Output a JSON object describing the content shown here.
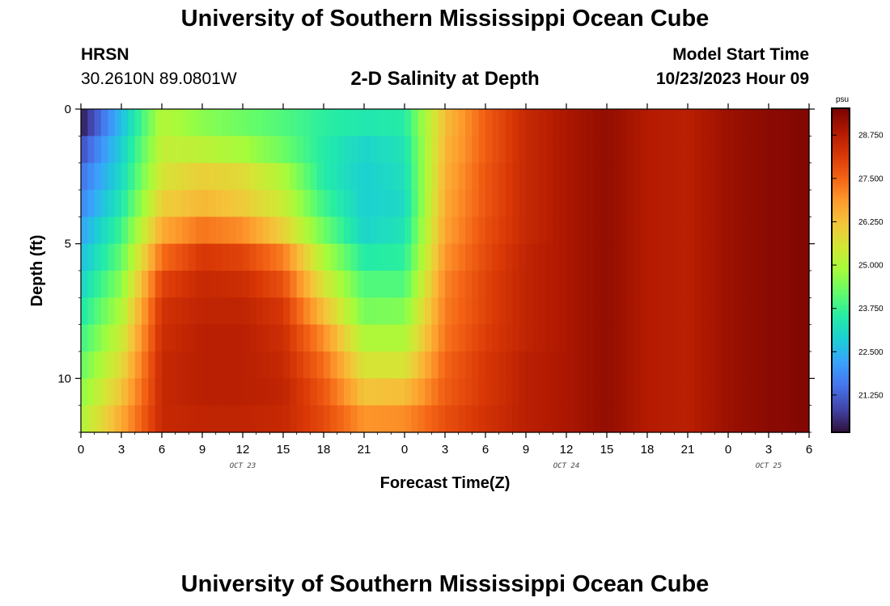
{
  "header": {
    "title": "University of Southern Mississippi Ocean Cube",
    "station_name": "HRSN",
    "coordinates": "30.2610N  89.0801W",
    "plot_title": "2-D Salinity at Depth",
    "model_start_label": "Model Start Time",
    "model_start_time": "10/23/2023 Hour 09"
  },
  "footer": {
    "title": "University of Southern Mississippi Ocean Cube"
  },
  "colors": {
    "colormap": [
      "#30123b",
      "#4145ab",
      "#4675ed",
      "#39a2fc",
      "#1bcfd4",
      "#24eca6",
      "#61fc6c",
      "#a4fc3b",
      "#d1e834",
      "#f3c63a",
      "#fe9b2d",
      "#f36315",
      "#d93806",
      "#b11901",
      "#7a0402"
    ]
  },
  "chart_data": {
    "type": "heatmap",
    "title": "2-D Salinity at Depth",
    "xlabel": "Forecast Time(Z)",
    "ylabel": "Depth (ft)",
    "x_tick_labels": [
      "0",
      "3",
      "6",
      "9",
      "12",
      "15",
      "18",
      "21",
      "0",
      "3",
      "6",
      "9",
      "12",
      "15",
      "18",
      "21",
      "0",
      "3",
      "6"
    ],
    "x_range_hours": [
      0,
      54
    ],
    "date_labels": [
      {
        "hour": 12,
        "label": "OCT 23"
      },
      {
        "hour": 36,
        "label": "OCT 24"
      },
      {
        "hour": 51,
        "label": "OCT 25"
      }
    ],
    "y_ticks": [
      0,
      5,
      10
    ],
    "y_range_ft": [
      0,
      12
    ],
    "colorbar": {
      "unit": "psu",
      "range": [
        20.2,
        29.5
      ],
      "ticks": [
        "21.250",
        "22.500",
        "23.750",
        "25.000",
        "26.250",
        "27.500",
        "28.750"
      ]
    },
    "depth_levels_ft": [
      0.5,
      1.5,
      2.5,
      3.5,
      4.5,
      5.5,
      6.5,
      7.5,
      8.5,
      9.5,
      10.5,
      11.5
    ],
    "time_hours": [
      0,
      3,
      6,
      9,
      12,
      15,
      18,
      21,
      24,
      27,
      30,
      33,
      36,
      39,
      42,
      45,
      48,
      51,
      54
    ],
    "salinity_psu": [
      [
        20.3,
        22.6,
        25.1,
        24.6,
        24.3,
        24.0,
        23.6,
        23.4,
        23.5,
        26.3,
        27.6,
        28.5,
        28.9,
        29.2,
        28.8,
        28.7,
        29.1,
        29.3,
        29.4
      ],
      [
        21.0,
        22.9,
        25.3,
        25.2,
        24.9,
        24.3,
        23.5,
        23.0,
        23.3,
        26.4,
        27.6,
        28.5,
        28.9,
        29.2,
        28.8,
        28.7,
        29.1,
        29.3,
        29.4
      ],
      [
        21.5,
        23.1,
        25.6,
        26.0,
        25.8,
        25.0,
        23.5,
        22.9,
        23.2,
        26.5,
        27.7,
        28.5,
        28.9,
        29.2,
        28.8,
        28.7,
        29.1,
        29.3,
        29.4
      ],
      [
        21.8,
        23.4,
        26.0,
        26.4,
        26.1,
        25.4,
        23.8,
        22.9,
        23.1,
        26.6,
        27.7,
        28.5,
        28.9,
        29.2,
        28.8,
        28.7,
        29.1,
        29.3,
        29.4
      ],
      [
        22.2,
        23.8,
        26.6,
        27.3,
        27.0,
        26.0,
        24.3,
        23.0,
        23.3,
        26.7,
        27.8,
        28.5,
        28.9,
        29.2,
        28.8,
        28.7,
        29.1,
        29.3,
        29.4
      ],
      [
        22.6,
        24.2,
        27.4,
        28.2,
        28.0,
        27.2,
        25.0,
        23.5,
        23.6,
        26.9,
        27.9,
        28.6,
        28.9,
        29.2,
        28.8,
        28.7,
        29.1,
        29.3,
        29.4
      ],
      [
        23.0,
        24.6,
        28.0,
        28.5,
        28.4,
        27.8,
        25.6,
        24.0,
        24.0,
        27.1,
        28.0,
        28.6,
        28.9,
        29.2,
        28.8,
        28.7,
        29.1,
        29.3,
        29.4
      ],
      [
        23.4,
        25.0,
        28.3,
        28.6,
        28.6,
        28.2,
        26.3,
        24.4,
        24.5,
        27.2,
        28.0,
        28.6,
        28.9,
        29.2,
        28.8,
        28.7,
        29.1,
        29.3,
        29.4
      ],
      [
        23.8,
        25.4,
        28.4,
        28.7,
        28.7,
        28.4,
        27.0,
        25.0,
        25.0,
        27.3,
        28.1,
        28.6,
        28.9,
        29.2,
        28.8,
        28.7,
        29.1,
        29.3,
        29.4
      ],
      [
        24.2,
        25.8,
        28.5,
        28.7,
        28.7,
        28.5,
        27.4,
        25.6,
        25.6,
        27.5,
        28.2,
        28.7,
        28.9,
        29.2,
        28.8,
        28.7,
        29.1,
        29.3,
        29.4
      ],
      [
        24.6,
        26.2,
        28.5,
        28.7,
        28.7,
        28.6,
        27.7,
        26.2,
        26.3,
        27.6,
        28.2,
        28.7,
        28.9,
        29.2,
        28.8,
        28.7,
        29.1,
        29.3,
        29.4
      ],
      [
        25.0,
        26.6,
        28.5,
        28.6,
        28.6,
        28.5,
        27.9,
        26.9,
        27.0,
        27.8,
        28.3,
        28.7,
        28.9,
        29.2,
        28.8,
        28.7,
        29.1,
        29.3,
        29.4
      ]
    ]
  }
}
